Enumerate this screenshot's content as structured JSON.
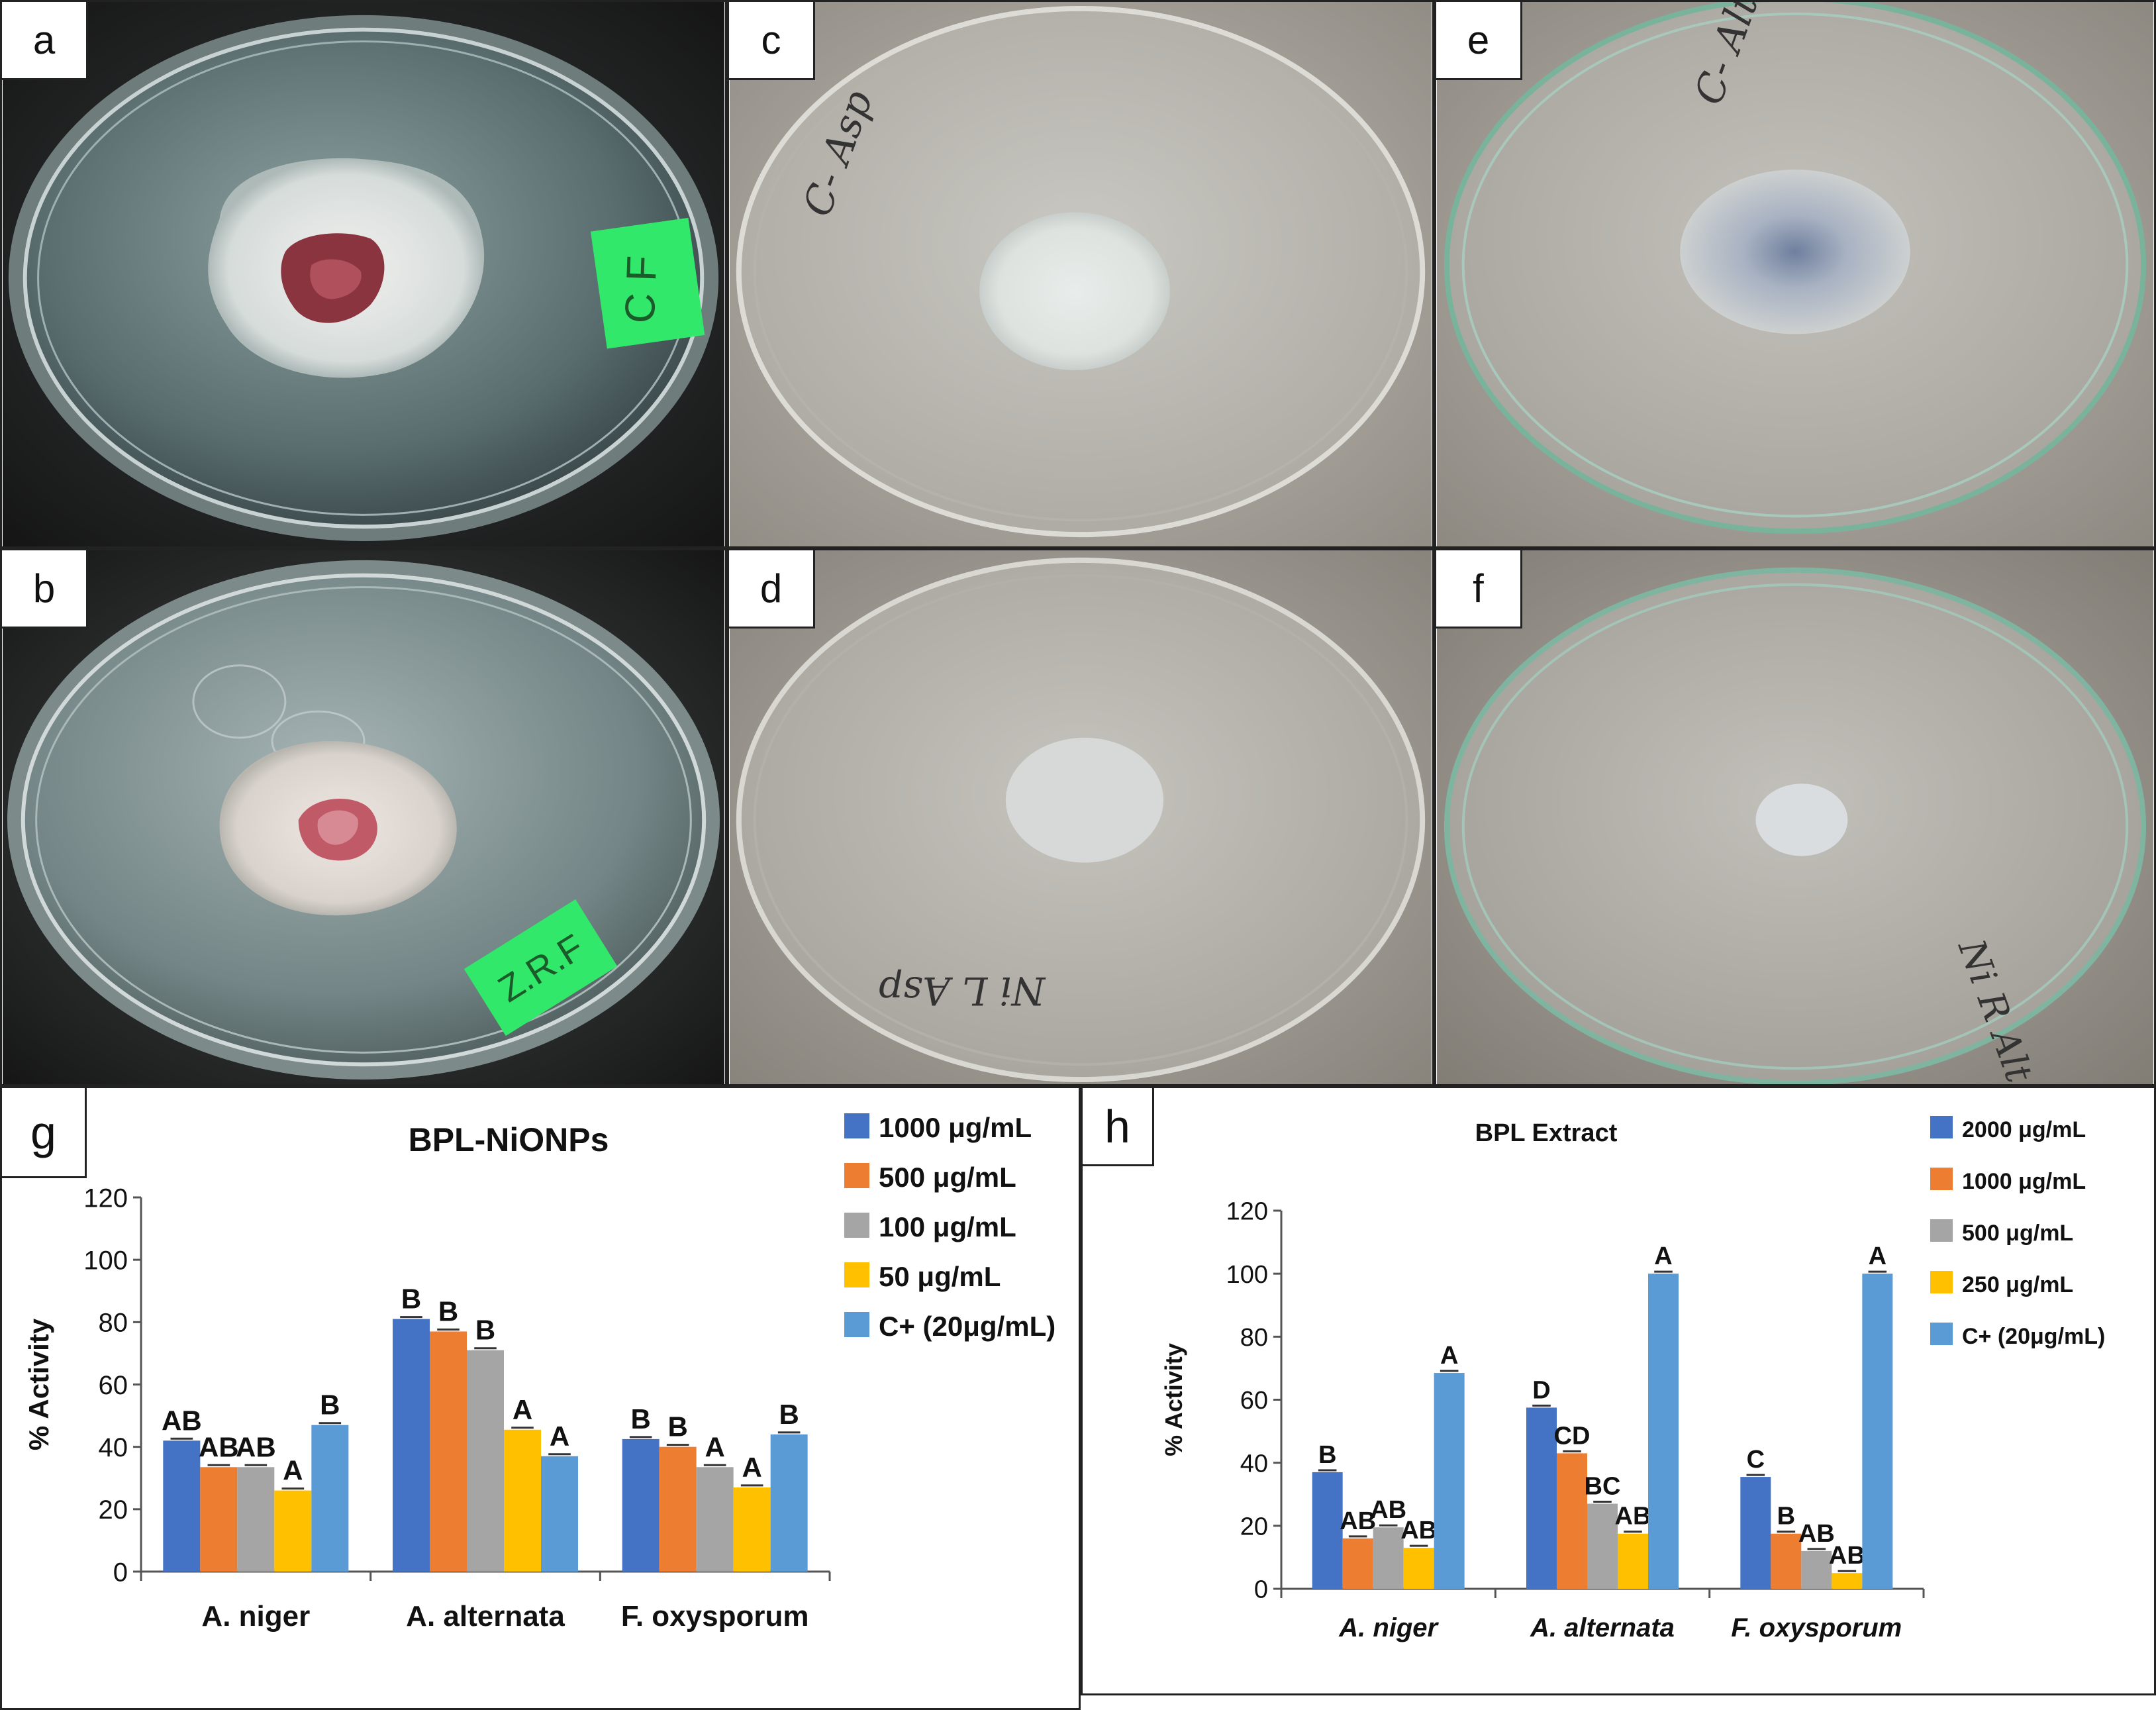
{
  "photos": [
    {
      "letter": "a",
      "label": "C F",
      "label_color": "#31e86a",
      "scene": "dark"
    },
    {
      "letter": "b",
      "label": "Z.R.F",
      "label_color": "#31e86a",
      "scene": "dark"
    },
    {
      "letter": "c",
      "label": "C- Asp",
      "scene": "light"
    },
    {
      "letter": "d",
      "label": "Ni L Asp",
      "scene": "light"
    },
    {
      "letter": "e",
      "label": "C- Alt",
      "scene": "light"
    },
    {
      "letter": "f",
      "label": "Ni R Alt",
      "scene": "light"
    }
  ],
  "chart_data": [
    {
      "type": "bar",
      "panel_letter": "g",
      "title": "BPL-NiONPs",
      "ylabel": "% Activity",
      "xlabel": "",
      "ylim": [
        0,
        120
      ],
      "yticks": [
        0,
        20,
        40,
        60,
        80,
        100,
        120
      ],
      "grid": false,
      "legend_position": "top-right",
      "categories": [
        "A. niger",
        "A. alternata",
        "F. oxysporum"
      ],
      "series": [
        {
          "name": "1000 μg/mL",
          "color": "#4472c4",
          "values": [
            42,
            81,
            42.5
          ],
          "letters": [
            "AB",
            "B",
            "B"
          ]
        },
        {
          "name": "500 μg/mL",
          "color": "#ed7d31",
          "values": [
            33.5,
            77,
            40
          ],
          "letters": [
            "AB",
            "B",
            "B"
          ]
        },
        {
          "name": "100 μg/mL",
          "color": "#a5a5a5",
          "values": [
            33.5,
            71,
            33.5
          ],
          "letters": [
            "AB",
            "B",
            "A"
          ]
        },
        {
          "name": "50 μg/mL",
          "color": "#ffc000",
          "values": [
            26,
            45.5,
            27
          ],
          "letters": [
            "A",
            "A",
            "A"
          ]
        },
        {
          "name": "C+ (20μg/mL)",
          "color": "#5b9bd5",
          "values": [
            47,
            37,
            44
          ],
          "letters": [
            "B",
            "A",
            "B"
          ]
        }
      ]
    },
    {
      "type": "bar",
      "panel_letter": "h",
      "title": "BPL Extract",
      "ylabel": "% Activity",
      "xlabel": "",
      "ylim": [
        0,
        120
      ],
      "yticks": [
        0,
        20,
        40,
        60,
        80,
        100,
        120
      ],
      "grid": false,
      "legend_position": "top-right",
      "categories": [
        "A. niger",
        "A. alternata",
        "F. oxysporum"
      ],
      "series": [
        {
          "name": "2000 μg/mL",
          "color": "#4472c4",
          "values": [
            37,
            57.5,
            35.5
          ],
          "letters": [
            "B",
            "D",
            "C"
          ]
        },
        {
          "name": "1000 μg/mL",
          "color": "#ed7d31",
          "values": [
            16,
            43,
            17.5
          ],
          "letters": [
            "AB",
            "CD",
            "B"
          ]
        },
        {
          "name": "500 μg/mL",
          "color": "#a5a5a5",
          "values": [
            19.5,
            27,
            12
          ],
          "letters": [
            "AB",
            "BC",
            "AB"
          ]
        },
        {
          "name": "250 μg/mL",
          "color": "#ffc000",
          "values": [
            13,
            17.5,
            5
          ],
          "letters": [
            "AB",
            "AB",
            "AB"
          ]
        },
        {
          "name": "C+  (20μg/mL)",
          "color": "#5b9bd5",
          "values": [
            68.5,
            100,
            100
          ],
          "letters": [
            "A",
            "A",
            "A"
          ]
        }
      ]
    }
  ]
}
